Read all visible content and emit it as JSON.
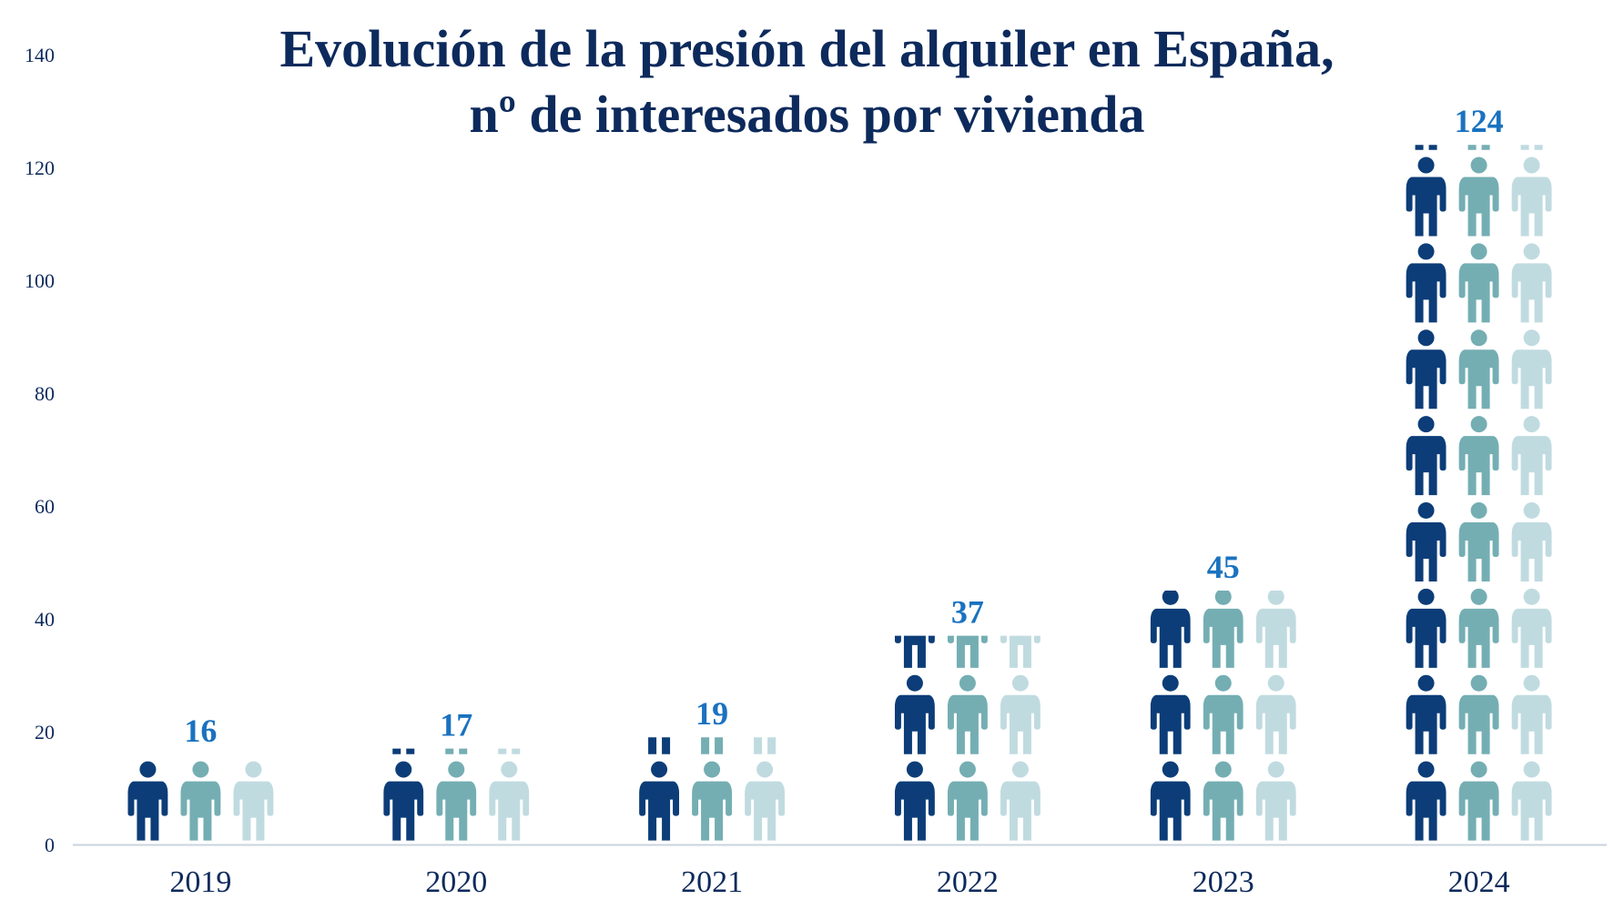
{
  "chart_data": {
    "type": "bar",
    "title_line1": "Evolución de la presión del alquiler en España,",
    "title_line2": "nº de interesados por vivienda",
    "categories": [
      "2019",
      "2020",
      "2021",
      "2022",
      "2023",
      "2024"
    ],
    "values": [
      16,
      17,
      19,
      37,
      45,
      124
    ],
    "ylim": [
      0,
      140
    ],
    "yticks": [
      "0",
      "20",
      "40",
      "60",
      "80",
      "100",
      "120",
      "140"
    ],
    "xlabel": "",
    "ylabel": "",
    "grid": false,
    "legend": "none",
    "mark_style": "pictogram-people",
    "colors": {
      "person_dark": "#0c3d78",
      "person_mid": "#74aeb3",
      "person_light": "#c0dbe0",
      "value_label": "#1a72c0",
      "axis": "#c9d3dd",
      "text": "#0d2a5c"
    }
  }
}
